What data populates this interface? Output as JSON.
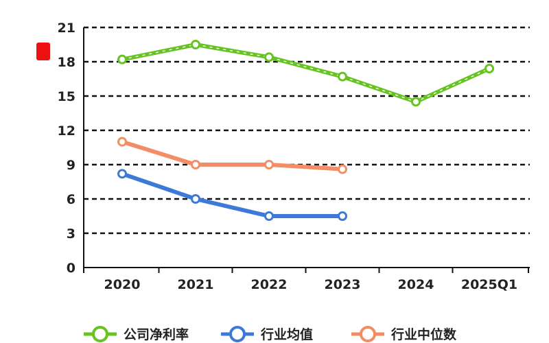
{
  "chart_data": {
    "type": "line",
    "categories": [
      "2020",
      "2021",
      "2022",
      "2023",
      "2024",
      "2025Q1"
    ],
    "ylim": [
      0,
      21
    ],
    "yticks": [
      "0",
      "3",
      "6",
      "9",
      "12",
      "15",
      "18",
      "21"
    ],
    "grid": true,
    "legend_position": "bottom",
    "series": [
      {
        "name": "公司净利率",
        "color": "#66c321",
        "dashed_overlay": true,
        "values": [
          18.2,
          19.5,
          18.4,
          16.7,
          14.5,
          17.4
        ]
      },
      {
        "name": "行业均值",
        "color": "#3d79d8",
        "dashed_overlay": false,
        "values": [
          8.2,
          6.0,
          4.5,
          4.5,
          null,
          null
        ]
      },
      {
        "name": "行业中位数",
        "color": "#f38d66",
        "dashed_overlay": false,
        "values": [
          11.0,
          9.0,
          9.0,
          8.6,
          null,
          null
        ]
      }
    ]
  }
}
